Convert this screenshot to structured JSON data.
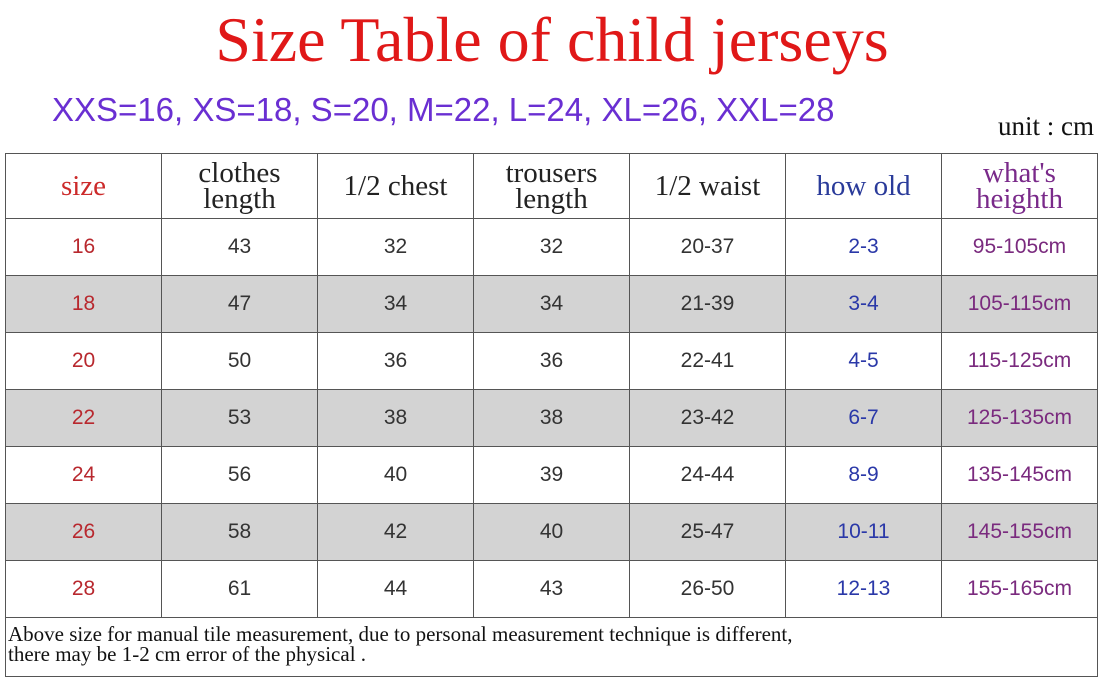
{
  "title": "Size Table of child jerseys",
  "size_map": "XXS=16, XS=18, S=20, M=22, L=24, XL=26, XXL=28",
  "unit": "unit : cm",
  "headers": [
    "size",
    "clothes length",
    "1/2 chest",
    "trousers length",
    "1/2 waist",
    "how old",
    "what's heighth"
  ],
  "rows": [
    [
      "16",
      "43",
      "32",
      "32",
      "20-37",
      "2-3",
      "95-105cm"
    ],
    [
      "18",
      "47",
      "34",
      "34",
      "21-39",
      "3-4",
      "105-115cm"
    ],
    [
      "20",
      "50",
      "36",
      "36",
      "22-41",
      "4-5",
      "115-125cm"
    ],
    [
      "22",
      "53",
      "38",
      "38",
      "23-42",
      "6-7",
      "125-135cm"
    ],
    [
      "24",
      "56",
      "40",
      "39",
      "24-44",
      "8-9",
      "135-145cm"
    ],
    [
      "26",
      "58",
      "42",
      "40",
      "25-47",
      "10-11",
      "145-155cm"
    ],
    [
      "28",
      "61",
      "44",
      "43",
      "26-50",
      "12-13",
      "155-165cm"
    ]
  ],
  "note_line1": "Above size for manual tile measurement, due to personal measurement technique is different,",
  "note_line2": "there may be 1-2 cm error of the physical .",
  "colors": {
    "title": "#e01818",
    "size_map": "#6a2fd2",
    "shaded_row": "#d3d3d3",
    "size_col": "#b8282e",
    "how_old_col": "#2a38a8",
    "height_col": "#7a2a7e"
  }
}
